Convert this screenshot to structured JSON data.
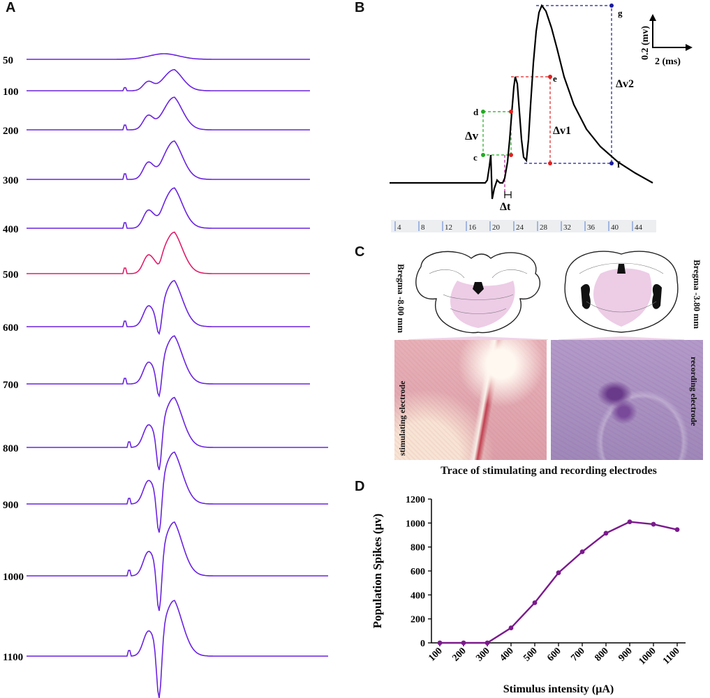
{
  "panels": {
    "a": "A",
    "b": "B",
    "c": "C",
    "d": "D"
  },
  "panel_a": {
    "rows": [
      {
        "label": "50",
        "highlight": false,
        "amp": 0.06,
        "dip": 0.0
      },
      {
        "label": "100",
        "highlight": false,
        "amp": 0.55,
        "dip": 0.0
      },
      {
        "label": "200",
        "highlight": false,
        "amp": 0.85,
        "dip": 0.0
      },
      {
        "label": "300",
        "highlight": false,
        "amp": 1.0,
        "dip": 0.02
      },
      {
        "label": "400",
        "highlight": false,
        "amp": 1.05,
        "dip": 0.05
      },
      {
        "label": "500",
        "highlight": true,
        "amp": 1.08,
        "dip": 0.15
      },
      {
        "label": "600",
        "highlight": false,
        "amp": 1.2,
        "dip": 0.55
      },
      {
        "label": "700",
        "highlight": false,
        "amp": 1.25,
        "dip": 0.65
      },
      {
        "label": "800",
        "highlight": false,
        "amp": 1.3,
        "dip": 0.85
      },
      {
        "label": "900",
        "highlight": false,
        "amp": 1.35,
        "dip": 0.95
      },
      {
        "label": "1000",
        "highlight": false,
        "amp": 1.4,
        "dip": 1.05
      },
      {
        "label": "1100",
        "highlight": false,
        "amp": 1.45,
        "dip": 1.15
      }
    ],
    "colors": {
      "normal": "#6a22e0",
      "highlight": "#e01e6a"
    }
  },
  "panel_b": {
    "labels": {
      "c": "c",
      "d": "d",
      "e": "e",
      "f": "f",
      "g": "g",
      "dv": "Δv",
      "dv1": "Δv1",
      "dv2": "Δv2",
      "dt": "Δt"
    },
    "scale": {
      "y": "0.2 (mv)",
      "x": "2 (ms)"
    },
    "ruler_ticks": [
      "4",
      "8",
      "12",
      "16",
      "20",
      "24",
      "28",
      "32",
      "36",
      "40",
      "44"
    ],
    "colors": {
      "trace": "#000000",
      "green": "#22aa22",
      "red": "#e02020",
      "blue": "#1a1aa0",
      "magenta": "#b02090"
    }
  },
  "panel_c": {
    "left_side_label": "Bregma -8.00 mm",
    "right_side_label": "Bregma -3.80 mm",
    "left_photo_label": "stimulating electrode",
    "right_photo_label": "recording electrode",
    "caption": "Trace of stimulating and recording electrodes"
  },
  "chart_data": {
    "type": "line",
    "title": "",
    "xlabel": "Stimulus intensity (μA)",
    "ylabel": "Population Spikes (μv)",
    "categories": [
      "100",
      "200",
      "300",
      "400",
      "500",
      "600",
      "700",
      "800",
      "900",
      "1000",
      "1100"
    ],
    "values": [
      0,
      0,
      0,
      125,
      335,
      585,
      760,
      915,
      1010,
      990,
      945
    ],
    "ylim": [
      0,
      1200
    ],
    "yticks": [
      "0",
      "200",
      "400",
      "600",
      "800",
      "1000",
      "1200"
    ],
    "color": "#7b1a8c"
  }
}
